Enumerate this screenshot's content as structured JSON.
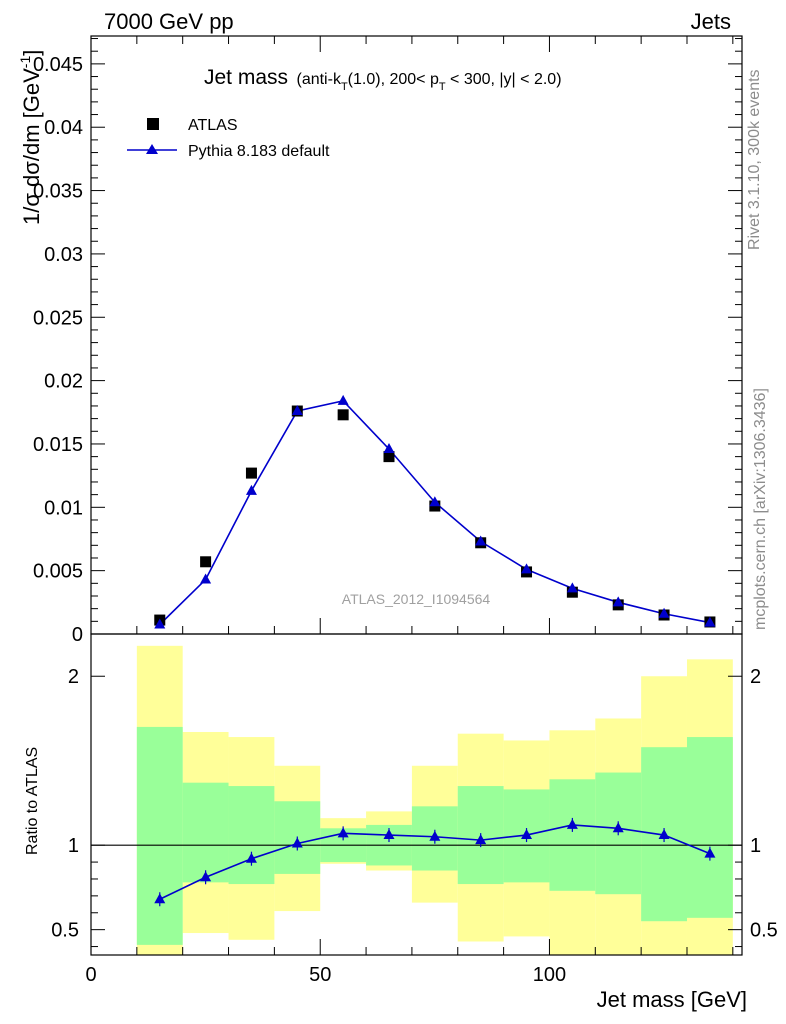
{
  "header": {
    "left": "7000 GeV pp",
    "right": "Jets"
  },
  "side_labels": {
    "rivet": "Rivet 3.1.10,  300k events",
    "mcplots": "mcplots.cern.ch [arXiv:1306.3436]"
  },
  "watermark": "ATLAS_2012_I1094564",
  "colors": {
    "mc": "#0000cc",
    "data": "#000000",
    "band_inner": "#99ff99",
    "band_outer": "#ffff99"
  },
  "chart_data": [
    {
      "type": "scatter",
      "title_main": "Jet mass",
      "title_sub": "(anti-k",
      "title_sub_T": "T",
      "title_sub_mid": "(1.0), 200< p",
      "title_sub_T2": "T",
      "title_sub_end": " < 300, |y| < 2.0)",
      "ylabel": "1/σ dσ/dm [GeV",
      "ylabel_sup": "-1",
      "ylabel_end": "]",
      "xlim": [
        0,
        142
      ],
      "ylim": [
        0,
        0.0472
      ],
      "yticks": [
        0,
        0.005,
        0.01,
        0.015,
        0.02,
        0.025,
        0.03,
        0.035,
        0.04,
        0.045
      ],
      "ytick_labels": [
        "0",
        "0.005",
        "0.01",
        "0.015",
        "0.02",
        "0.025",
        "0.03",
        "0.035",
        "0.04",
        "0.045"
      ],
      "legend": [
        {
          "name": "ATLAS",
          "marker": "square"
        },
        {
          "name": "Pythia 8.183 default",
          "marker": "triangle"
        }
      ],
      "x": [
        15,
        25,
        35,
        45,
        55,
        65,
        75,
        85,
        95,
        105,
        115,
        125,
        135
      ],
      "series": [
        {
          "name": "ATLAS",
          "values": [
            0.0011,
            0.0057,
            0.0127,
            0.0176,
            0.0173,
            0.014,
            0.0101,
            0.0072,
            0.0049,
            0.0033,
            0.0023,
            0.0015,
            0.00095
          ]
        },
        {
          "name": "Pythia 8.183 default",
          "values": [
            0.00075,
            0.0043,
            0.0113,
            0.0176,
            0.0184,
            0.0146,
            0.0104,
            0.0073,
            0.0051,
            0.0036,
            0.0025,
            0.0016,
            0.0009
          ]
        }
      ]
    },
    {
      "type": "line",
      "ylabel": "Ratio to ATLAS",
      "xlabel": "Jet mass [GeV]",
      "xlim": [
        0,
        142
      ],
      "ylim": [
        0.35,
        2.25
      ],
      "yticks": [
        0.5,
        1,
        2
      ],
      "ytick_labels": [
        "0.5",
        "1",
        "2"
      ],
      "xticks": [
        0,
        50,
        100
      ],
      "xtick_labels": [
        "0",
        "50",
        "100"
      ],
      "bins": [
        [
          10,
          20
        ],
        [
          20,
          30
        ],
        [
          30,
          40
        ],
        [
          40,
          50
        ],
        [
          50,
          60
        ],
        [
          60,
          70
        ],
        [
          70,
          80
        ],
        [
          80,
          90
        ],
        [
          90,
          100
        ],
        [
          100,
          110
        ],
        [
          110,
          120
        ],
        [
          120,
          130
        ],
        [
          130,
          140
        ]
      ],
      "band_inner": [
        [
          0.41,
          1.7
        ],
        [
          0.78,
          1.37
        ],
        [
          0.77,
          1.35
        ],
        [
          0.83,
          1.26
        ],
        [
          0.9,
          1.1
        ],
        [
          0.88,
          1.12
        ],
        [
          0.85,
          1.23
        ],
        [
          0.77,
          1.35
        ],
        [
          0.78,
          1.33
        ],
        [
          0.73,
          1.39
        ],
        [
          0.71,
          1.43
        ],
        [
          0.55,
          1.58
        ],
        [
          0.57,
          1.64
        ]
      ],
      "band_outer": [
        [
          0.35,
          2.18
        ],
        [
          0.48,
          1.67
        ],
        [
          0.44,
          1.64
        ],
        [
          0.61,
          1.47
        ],
        [
          0.89,
          1.16
        ],
        [
          0.85,
          1.2
        ],
        [
          0.66,
          1.47
        ],
        [
          0.43,
          1.66
        ],
        [
          0.46,
          1.62
        ],
        [
          0.33,
          1.68
        ],
        [
          0.3,
          1.75
        ],
        [
          0.3,
          2.0
        ],
        [
          0.3,
          2.1
        ]
      ],
      "x": [
        15,
        25,
        35,
        45,
        55,
        65,
        75,
        85,
        95,
        105,
        115,
        125,
        135
      ],
      "values": [
        0.68,
        0.81,
        0.92,
        1.01,
        1.07,
        1.06,
        1.05,
        1.03,
        1.06,
        1.12,
        1.1,
        1.06,
        0.95
      ]
    }
  ]
}
